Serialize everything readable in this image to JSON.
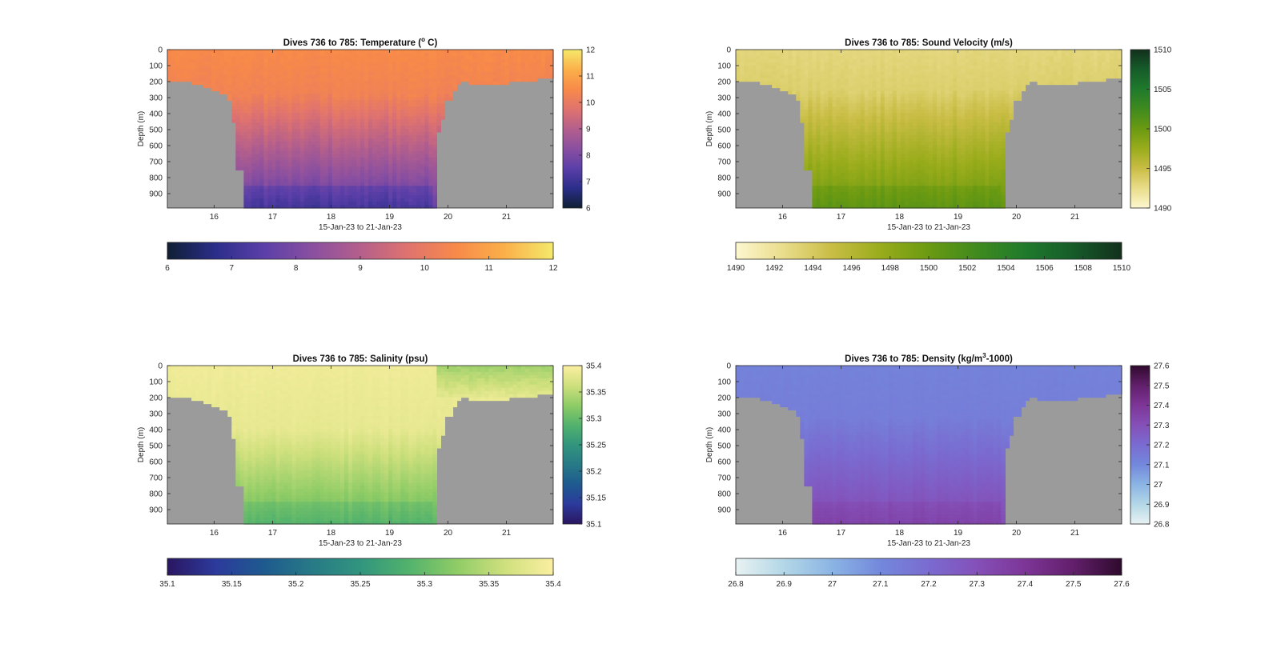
{
  "figure": {
    "background": "#ffffff",
    "land_color": "#9b9b9b"
  },
  "chart_data": [
    {
      "type": "heatmap",
      "title": "Dives 736 to 785: Temperature (° C)",
      "title_parts": [
        "Dives 736 to 785: Temperature (",
        "o",
        " C)"
      ],
      "xlabel": "15-Jan-23 to 21-Jan-23",
      "ylabel": "Depth (m)",
      "x_ticks": [
        "16",
        "17",
        "18",
        "19",
        "20",
        "21"
      ],
      "y_ticks": [
        "0",
        "100",
        "200",
        "300",
        "400",
        "500",
        "600",
        "700",
        "800",
        "900"
      ],
      "xlim": [
        15.2,
        21.8
      ],
      "ylim": [
        0,
        990
      ],
      "cbar_side_ticks": [
        "6",
        "7",
        "8",
        "9",
        "10",
        "11",
        "12"
      ],
      "cbar_bottom_ticks": [
        "6",
        "7",
        "8",
        "9",
        "10",
        "11",
        "12"
      ],
      "clim": [
        6,
        12
      ],
      "colormap": [
        "#0f1f33",
        "#2b2e8a",
        "#5b3fa8",
        "#8a4fa0",
        "#b45f8c",
        "#e0736e",
        "#f88a49",
        "#fbb04a",
        "#f5e96a"
      ],
      "surface_value": 10.5,
      "deep_value": 7.5,
      "thermocline_depth": 280
    },
    {
      "type": "heatmap",
      "title": "Dives 736 to 785: Sound Velocity (m/s)",
      "xlabel": "15-Jan-23 to 21-Jan-23",
      "ylabel": "Depth (m)",
      "x_ticks": [
        "16",
        "17",
        "18",
        "19",
        "20",
        "21"
      ],
      "y_ticks": [
        "0",
        "100",
        "200",
        "300",
        "400",
        "500",
        "600",
        "700",
        "800",
        "900"
      ],
      "xlim": [
        15.2,
        21.8
      ],
      "ylim": [
        0,
        990
      ],
      "cbar_side_ticks": [
        "1490",
        "1495",
        "1500",
        "1505",
        "1510"
      ],
      "cbar_bottom_ticks": [
        "1490",
        "1492",
        "1494",
        "1496",
        "1498",
        "1500",
        "1502",
        "1504",
        "1506",
        "1508",
        "1510"
      ],
      "clim": [
        1490,
        1510
      ],
      "colormap": [
        "#fdf7cf",
        "#e9dc8a",
        "#c9bd45",
        "#99ac1b",
        "#6b9a12",
        "#3f8a1e",
        "#1f7a2c",
        "#165c2a",
        "#12301c"
      ],
      "surface_value": 1493,
      "deep_value": 1500,
      "thermocline_depth": 250
    },
    {
      "type": "heatmap",
      "title": "Dives 736 to 785: Salinity (psu)",
      "xlabel": "15-Jan-23 to 21-Jan-23",
      "ylabel": "Depth (m)",
      "x_ticks": [
        "16",
        "17",
        "18",
        "19",
        "20",
        "21"
      ],
      "y_ticks": [
        "0",
        "100",
        "200",
        "300",
        "400",
        "500",
        "600",
        "700",
        "800",
        "900"
      ],
      "xlim": [
        15.2,
        21.8
      ],
      "ylim": [
        0,
        990
      ],
      "cbar_side_ticks": [
        "35.1",
        "35.15",
        "35.2",
        "35.25",
        "35.3",
        "35.35",
        "35.4"
      ],
      "cbar_bottom_ticks": [
        "35.1",
        "35.15",
        "35.2",
        "35.25",
        "35.3",
        "35.35",
        "35.4"
      ],
      "clim": [
        35.1,
        35.4
      ],
      "colormap": [
        "#2a1660",
        "#2c3a9c",
        "#1e5a8f",
        "#277a86",
        "#31957e",
        "#52b26c",
        "#8fcc66",
        "#cfe07e",
        "#fbefa1"
      ],
      "surface_value": 35.39,
      "deep_value": 35.3,
      "thermocline_depth": 400
    },
    {
      "type": "heatmap",
      "title": "Dives 736 to 785: Density (kg/m³-1000)",
      "title_parts": [
        "Dives 736 to 785: Density (kg/m",
        "3",
        "-1000)"
      ],
      "xlabel": "15-Jan-23 to 21-Jan-23",
      "ylabel": "Depth (m)",
      "x_ticks": [
        "16",
        "17",
        "18",
        "19",
        "20",
        "21"
      ],
      "y_ticks": [
        "0",
        "100",
        "200",
        "300",
        "400",
        "500",
        "600",
        "700",
        "800",
        "900"
      ],
      "xlim": [
        15.2,
        21.8
      ],
      "ylim": [
        0,
        990
      ],
      "cbar_side_ticks": [
        "26.8",
        "26.9",
        "27",
        "27.1",
        "27.2",
        "27.3",
        "27.4",
        "27.5",
        "27.6"
      ],
      "cbar_bottom_ticks": [
        "26.8",
        "26.9",
        "27",
        "27.1",
        "27.2",
        "27.3",
        "27.4",
        "27.5",
        "27.6"
      ],
      "clim": [
        26.8,
        27.6
      ],
      "colormap": [
        "#e8f2f2",
        "#b3d7e7",
        "#8bb4e4",
        "#7388dc",
        "#7a6bd0",
        "#8450b8",
        "#7d3597",
        "#621f6b",
        "#2e0a2c"
      ],
      "surface_value": 27.12,
      "deep_value": 27.32,
      "thermocline_depth": 330
    }
  ]
}
